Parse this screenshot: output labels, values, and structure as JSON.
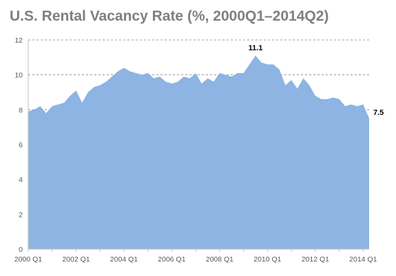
{
  "title": "U.S. Rental Vacancy Rate (%, 2000Q1–2014Q2)",
  "colors": {
    "area": "#8db4e2",
    "title": "#7f7f7f",
    "grid": "#808080",
    "axis": "#bfbfbf"
  },
  "chart_data": {
    "type": "area",
    "title": "U.S. Rental Vacancy Rate (%, 2000Q1–2014Q2)",
    "xlabel": "",
    "ylabel": "",
    "ylim": [
      0,
      12
    ],
    "yticks": [
      0,
      2,
      4,
      6,
      8,
      10,
      12
    ],
    "grid": "horizontal dashed",
    "legend": "none",
    "xtick_labels": [
      "2000 Q1",
      "2002 Q1",
      "2004 Q1",
      "2006 Q1",
      "2008 Q1",
      "2010 Q1",
      "2012 Q1",
      "2014 Q1"
    ],
    "xtick_positions": [
      0,
      8,
      16,
      24,
      32,
      40,
      48,
      56
    ],
    "x": [
      "2000 Q1",
      "2000 Q2",
      "2000 Q3",
      "2000 Q4",
      "2001 Q1",
      "2001 Q2",
      "2001 Q3",
      "2001 Q4",
      "2002 Q1",
      "2002 Q2",
      "2002 Q3",
      "2002 Q4",
      "2003 Q1",
      "2003 Q2",
      "2003 Q3",
      "2003 Q4",
      "2004 Q1",
      "2004 Q2",
      "2004 Q3",
      "2004 Q4",
      "2005 Q1",
      "2005 Q2",
      "2005 Q3",
      "2005 Q4",
      "2006 Q1",
      "2006 Q2",
      "2006 Q3",
      "2006 Q4",
      "2007 Q1",
      "2007 Q2",
      "2007 Q3",
      "2007 Q4",
      "2008 Q1",
      "2008 Q2",
      "2008 Q3",
      "2008 Q4",
      "2009 Q1",
      "2009 Q2",
      "2009 Q3",
      "2009 Q4",
      "2010 Q1",
      "2010 Q2",
      "2010 Q3",
      "2010 Q4",
      "2011 Q1",
      "2011 Q2",
      "2011 Q3",
      "2011 Q4",
      "2012 Q1",
      "2012 Q2",
      "2012 Q3",
      "2012 Q4",
      "2013 Q1",
      "2013 Q2",
      "2013 Q3",
      "2013 Q4",
      "2014 Q1",
      "2014 Q2"
    ],
    "values": [
      7.9,
      8.0,
      8.2,
      7.8,
      8.2,
      8.3,
      8.4,
      8.8,
      9.1,
      8.4,
      9.0,
      9.3,
      9.4,
      9.6,
      9.9,
      10.2,
      10.4,
      10.2,
      10.1,
      10.0,
      10.1,
      9.8,
      9.9,
      9.6,
      9.5,
      9.6,
      9.9,
      9.8,
      10.1,
      9.5,
      9.8,
      9.6,
      10.1,
      10.0,
      9.9,
      10.1,
      10.1,
      10.6,
      11.1,
      10.7,
      10.6,
      10.6,
      10.3,
      9.4,
      9.7,
      9.2,
      9.8,
      9.4,
      8.8,
      8.6,
      8.6,
      8.7,
      8.6,
      8.2,
      8.3,
      8.2,
      8.3,
      7.5
    ],
    "annotations": [
      {
        "index": 38,
        "text": "11.1",
        "position": "above"
      },
      {
        "index": 57,
        "text": "7.5",
        "position": "right"
      }
    ]
  }
}
